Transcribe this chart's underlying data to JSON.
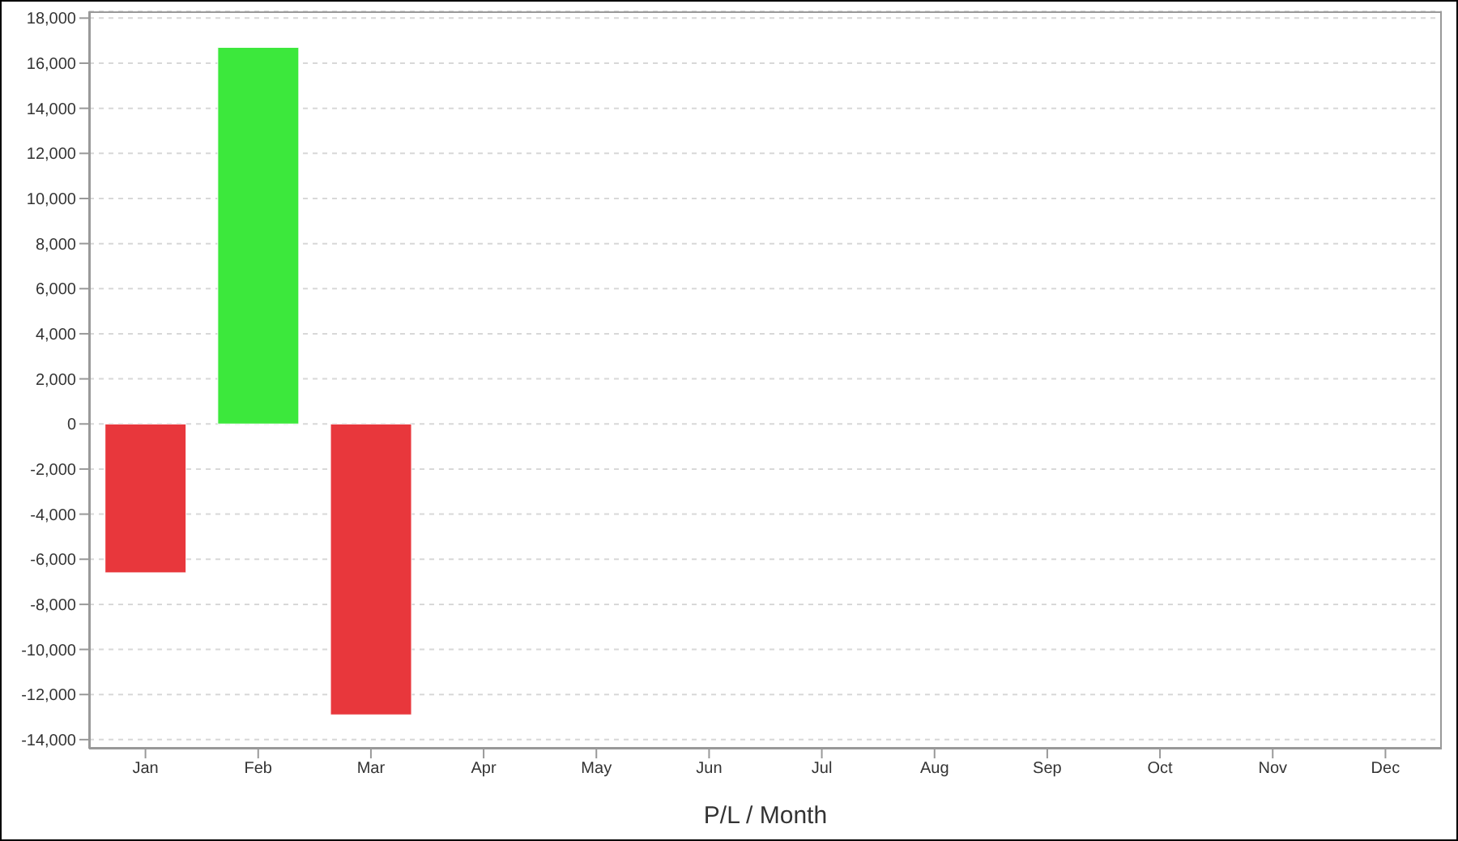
{
  "chart_data": {
    "type": "bar",
    "xlabel": "P/L / Month",
    "categories": [
      "Jan",
      "Feb",
      "Mar",
      "Apr",
      "May",
      "Jun",
      "Jul",
      "Aug",
      "Sep",
      "Oct",
      "Nov",
      "Dec"
    ],
    "values": [
      -6600,
      16700,
      -12900,
      null,
      null,
      null,
      null,
      null,
      null,
      null,
      null,
      null
    ],
    "colors": [
      "#e8373c",
      "#3ce83c",
      "#e8373c",
      "#e8373c",
      "#e8373c",
      "#e8373c",
      "#e8373c",
      "#e8373c",
      "#e8373c",
      "#e8373c",
      "#e8373c",
      "#e8373c"
    ],
    "ylim": [
      -14400,
      18300
    ],
    "yticks": [
      {
        "value": -14000,
        "label": "-14,000"
      },
      {
        "value": -12000,
        "label": "-12,000"
      },
      {
        "value": -10000,
        "label": "-10,000"
      },
      {
        "value": -8000,
        "label": "-8,000"
      },
      {
        "value": -6000,
        "label": "-6,000"
      },
      {
        "value": -4000,
        "label": "-4,000"
      },
      {
        "value": -2000,
        "label": "-2,000"
      },
      0,
      {
        "value": 2000,
        "label": "2,000"
      },
      {
        "value": 4000,
        "label": "4,000"
      },
      {
        "value": 6000,
        "label": "6,000"
      },
      {
        "value": 8000,
        "label": "8,000"
      },
      {
        "value": 10000,
        "label": "10,000"
      },
      {
        "value": 12000,
        "label": "12,000"
      },
      {
        "value": 14000,
        "label": "14,000"
      },
      {
        "value": 16000,
        "label": "16,000"
      },
      {
        "value": 18000,
        "label": "18,000"
      }
    ],
    "grid": "y",
    "legend": false
  }
}
